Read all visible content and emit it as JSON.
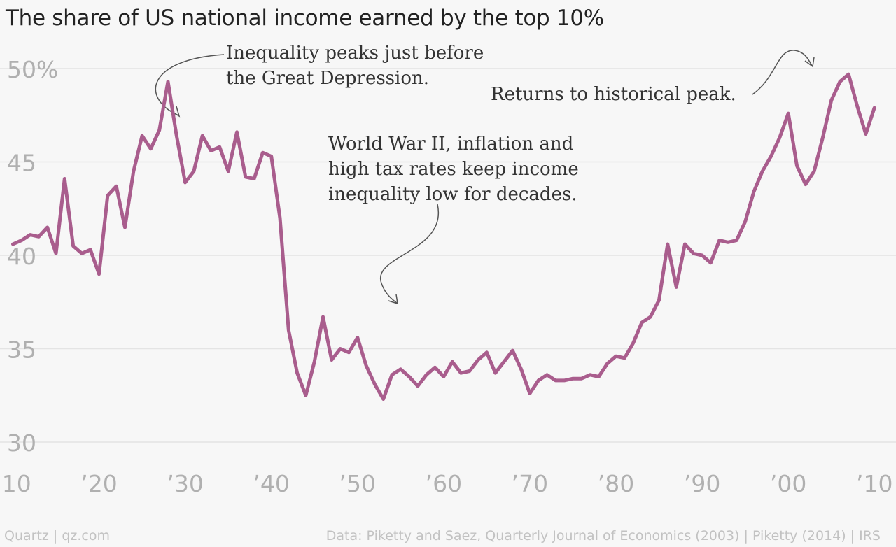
{
  "title": "The share of US national income earned by the top 10%",
  "footer": {
    "left": "Quartz | qz.com",
    "right": "Data: Piketty and Saez, Quarterly Journal of Economics (2003) | Piketty (2014) | IRS"
  },
  "annotations": {
    "depression": [
      "Inequality peaks just before",
      "the Great Depression."
    ],
    "ww2": [
      "World War II, inflation and",
      "high tax rates keep income",
      "inequality low for decades."
    ],
    "peak": [
      "Returns to historical peak."
    ]
  },
  "colors": {
    "line": "#a95d8d",
    "grid": "#e4e4e4",
    "tick": "#b0b0b0",
    "background": "#f7f7f7"
  },
  "chart_data": {
    "type": "line",
    "title": "The share of US national income earned by the top 10%",
    "xlabel": "",
    "ylabel": "",
    "xlim": [
      1908.5,
      2012.5
    ],
    "ylim": [
      28.2,
      51.5
    ],
    "y_ticks": [
      {
        "value": 50,
        "label": "50%"
      },
      {
        "value": 45,
        "label": "45"
      },
      {
        "value": 40,
        "label": "40"
      },
      {
        "value": 35,
        "label": "35"
      },
      {
        "value": 30,
        "label": "30"
      }
    ],
    "x_ticks": [
      {
        "value": 1910,
        "label": "’10"
      },
      {
        "value": 1920,
        "label": "’20"
      },
      {
        "value": 1930,
        "label": "’30"
      },
      {
        "value": 1940,
        "label": "’40"
      },
      {
        "value": 1950,
        "label": "’50"
      },
      {
        "value": 1960,
        "label": "’60"
      },
      {
        "value": 1970,
        "label": "’70"
      },
      {
        "value": 1980,
        "label": "’80"
      },
      {
        "value": 1990,
        "label": "’90"
      },
      {
        "value": 2000,
        "label": "’00"
      },
      {
        "value": 2010,
        "label": "’10"
      }
    ],
    "grid": true,
    "series": [
      {
        "x": [
          1910,
          1911,
          1912,
          1913,
          1914,
          1915,
          1916,
          1917,
          1918,
          1919,
          1920,
          1921,
          1922,
          1923,
          1924,
          1925,
          1926,
          1927,
          1928,
          1929,
          1930,
          1931,
          1932,
          1933,
          1934,
          1935,
          1936,
          1937,
          1938,
          1939,
          1940,
          1941,
          1942,
          1943,
          1944,
          1945,
          1946,
          1947,
          1948,
          1949,
          1950,
          1951,
          1952,
          1953,
          1954,
          1955,
          1956,
          1957,
          1958,
          1959,
          1960,
          1961,
          1962,
          1963,
          1964,
          1965,
          1966,
          1967,
          1968,
          1969,
          1970,
          1971,
          1972,
          1973,
          1974,
          1975,
          1976,
          1977,
          1978,
          1979,
          1980,
          1981,
          1982,
          1983,
          1984,
          1985,
          1986,
          1987,
          1988,
          1989,
          1990,
          1991,
          1992,
          1993,
          1994,
          1995,
          1996,
          1997,
          1998,
          1999,
          2000,
          2001,
          2002,
          2003,
          2004,
          2005,
          2006,
          2007,
          2008,
          2009,
          2010
        ],
        "values": [
          40.6,
          40.8,
          41.1,
          41.0,
          41.5,
          40.1,
          44.1,
          40.5,
          40.1,
          40.3,
          39.0,
          43.2,
          43.7,
          41.5,
          44.5,
          46.4,
          45.7,
          46.7,
          49.3,
          46.4,
          43.9,
          44.5,
          46.4,
          45.6,
          45.8,
          44.5,
          46.6,
          44.2,
          44.1,
          45.5,
          45.3,
          42.0,
          36.0,
          33.7,
          32.5,
          34.3,
          36.7,
          34.4,
          35.0,
          34.8,
          35.6,
          34.1,
          33.1,
          32.3,
          33.6,
          33.9,
          33.5,
          33.0,
          33.6,
          34.0,
          33.5,
          34.3,
          33.7,
          33.8,
          34.4,
          34.8,
          33.7,
          34.3,
          34.9,
          33.9,
          32.6,
          33.3,
          33.6,
          33.3,
          33.3,
          33.4,
          33.4,
          33.6,
          33.5,
          34.2,
          34.6,
          34.5,
          35.3,
          36.4,
          36.7,
          37.6,
          40.6,
          38.3,
          40.6,
          40.1,
          40.0,
          39.6,
          40.8,
          40.7,
          40.8,
          41.8,
          43.4,
          44.5,
          45.3,
          46.3,
          47.6,
          44.8,
          43.8,
          44.5,
          46.3,
          48.3,
          49.3,
          49.7,
          48.0,
          46.5,
          47.9
        ]
      }
    ]
  }
}
